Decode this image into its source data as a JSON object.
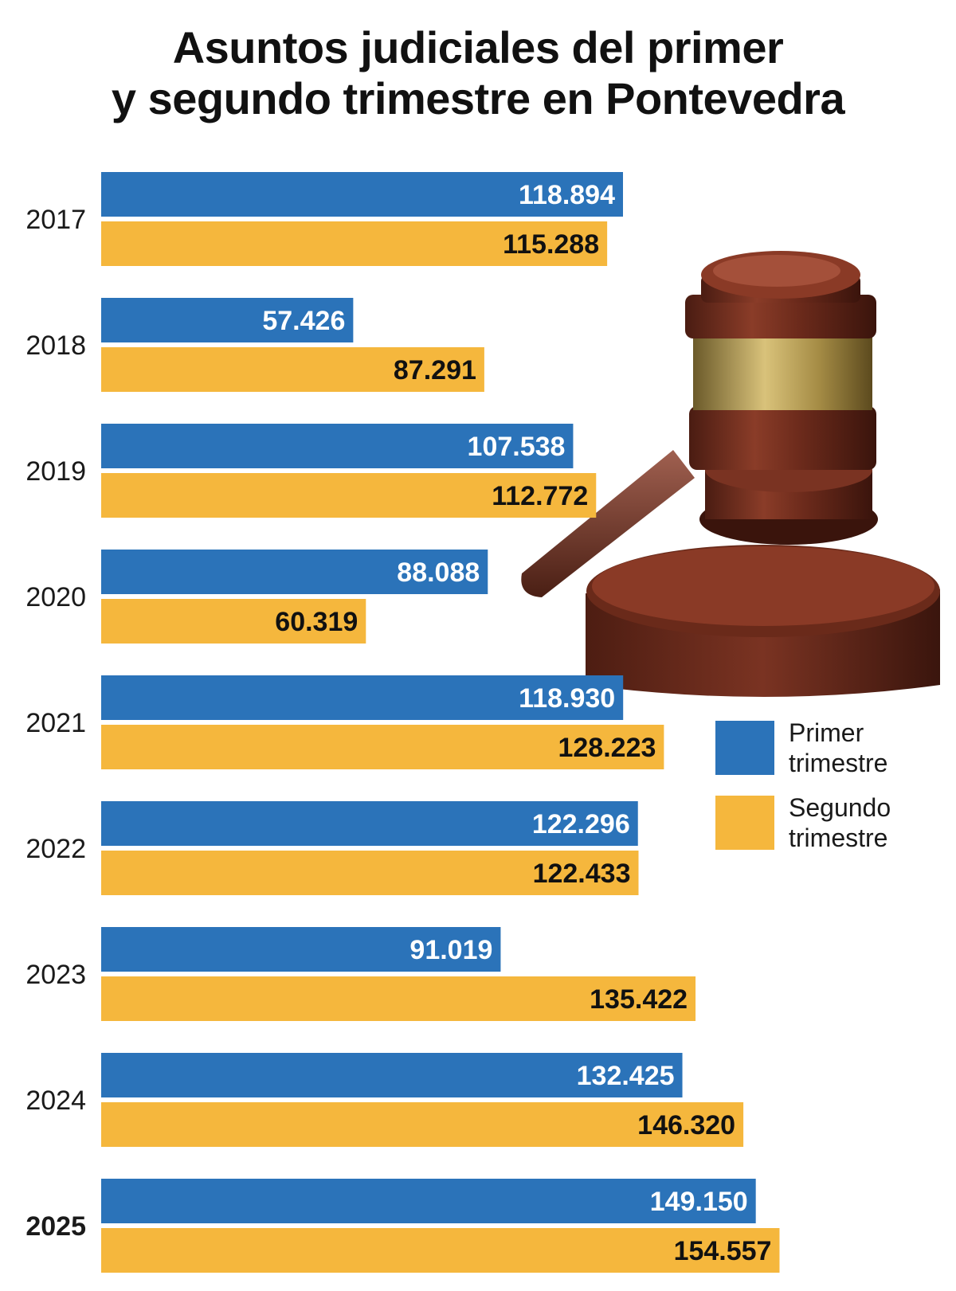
{
  "chart_data": {
    "type": "bar",
    "orientation": "horizontal",
    "title_lines": [
      "Asuntos judiciales del primer",
      "y segundo trimestre en Pontevedra"
    ],
    "categories": [
      "2017",
      "2018",
      "2019",
      "2020",
      "2021",
      "2022",
      "2023",
      "2024",
      "2025"
    ],
    "highlight_category": "2025",
    "series": [
      {
        "name_lines": [
          "Primer",
          "trimestre"
        ],
        "color": "#2b73b9",
        "label_color": "#ffffff",
        "values": [
          118894,
          57426,
          107538,
          88088,
          118930,
          122296,
          91019,
          132425,
          149150
        ],
        "labels": [
          "118.894",
          "57.426",
          "107.538",
          "88.088",
          "118.930",
          "122.296",
          "91.019",
          "132.425",
          "149.150"
        ]
      },
      {
        "name_lines": [
          "Segundo",
          "trimestre"
        ],
        "color": "#f5b73d",
        "label_color": "#111111",
        "values": [
          115288,
          87291,
          112772,
          60319,
          128223,
          122433,
          135422,
          146320,
          154557
        ],
        "labels": [
          "115.288",
          "87.291",
          "112.772",
          "60.319",
          "128.223",
          "122.433",
          "135.422",
          "146.320",
          "154.557"
        ]
      }
    ],
    "xlim": [
      0,
      160000
    ],
    "grid": false,
    "legend_position": "right"
  }
}
